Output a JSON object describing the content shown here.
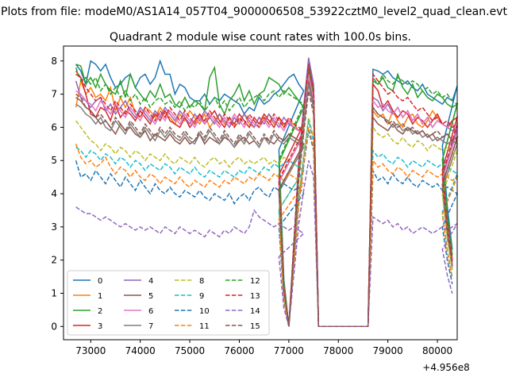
{
  "chart_data": {
    "type": "line",
    "suptitle": "Plots from file: modeM0/AS1A14_057T04_9000006508_53922cztM0_level2_quad_clean.evt",
    "title": "Quadrant 2 module wise count rates with 100.0s bins.",
    "xlabel": "",
    "ylabel": "",
    "x_offset_label": "+4.956e8",
    "xlim": [
      72450,
      80400
    ],
    "ylim": [
      -0.4,
      8.45
    ],
    "xticks": [
      73000,
      74000,
      75000,
      76000,
      77000,
      78000,
      79000,
      80000
    ],
    "xtick_labels": [
      "73000",
      "74000",
      "75000",
      "76000",
      "77000",
      "78000",
      "79000",
      "80000"
    ],
    "yticks": [
      0,
      1,
      2,
      3,
      4,
      5,
      6,
      7,
      8
    ],
    "ytick_labels": [
      "0",
      "1",
      "2",
      "3",
      "4",
      "5",
      "6",
      "7",
      "8"
    ],
    "legend_position": "lower-left",
    "series": [
      {
        "name": "0",
        "color": "#1f77b4",
        "dash": "solid",
        "seg1": [
          7.9,
          7.7,
          7.3,
          8.0,
          7.9,
          7.7,
          7.9,
          7.5,
          7.2,
          7.3,
          7.5,
          7.6,
          7.2,
          7.5,
          7.6,
          7.3,
          7.5,
          8.0,
          7.6,
          7.6,
          7.0,
          7.3,
          7.2,
          6.9,
          6.8,
          6.8,
          7.0,
          6.7,
          6.9,
          6.8,
          7.0,
          6.9,
          6.8,
          6.7,
          6.4,
          6.6,
          6.5,
          6.9,
          6.7,
          6.8,
          7.0,
          7.1,
          7.3,
          7.5,
          7.6,
          7.3,
          7.1
        ],
        "seg2": [
          7.75,
          7.7,
          7.6,
          7.7,
          7.5,
          7.4,
          7.3,
          7.4,
          7.2,
          7.1,
          7.3,
          7.0,
          6.9,
          6.8,
          6.7,
          6.9,
          6.8,
          7.25
        ],
        "peak": 7.95
      },
      {
        "name": "1",
        "color": "#ff7f0e",
        "dash": "solid",
        "seg1": [
          6.6,
          7.4,
          7.0,
          7.2,
          6.9,
          7.0,
          6.8,
          7.2,
          6.5,
          6.9,
          6.6,
          6.9,
          6.4,
          6.3,
          6.6,
          6.5,
          6.3,
          6.6,
          6.4,
          6.3,
          6.1,
          6.4,
          6.2,
          6.5,
          6.3,
          6.1,
          6.4,
          6.0,
          6.2,
          6.4,
          6.1,
          6.3,
          6.0,
          6.2,
          6.4,
          6.1,
          6.0,
          6.3,
          6.2,
          6.4,
          6.1,
          6.3,
          6.0,
          6.2,
          6.1,
          5.9,
          5.8
        ],
        "seg2": [
          6.5,
          6.3,
          6.4,
          6.1,
          6.5,
          6.2,
          6.0,
          6.3,
          6.4,
          6.1,
          6.0,
          6.2,
          6.5,
          6.3,
          6.1,
          6.0,
          6.2,
          5.5
        ],
        "peak": 7.5
      },
      {
        "name": "2",
        "color": "#2ca02c",
        "dash": "solid",
        "seg1": [
          7.9,
          7.85,
          7.3,
          7.5,
          7.2,
          7.6,
          7.3,
          7.1,
          7.0,
          7.4,
          6.9,
          7.6,
          7.2,
          7.0,
          6.8,
          7.1,
          6.9,
          7.3,
          6.9,
          7.0,
          6.7,
          6.6,
          6.9,
          6.6,
          6.8,
          6.7,
          6.5,
          7.5,
          7.8,
          6.7,
          6.4,
          6.8,
          7.0,
          7.3,
          6.8,
          7.1,
          6.7,
          7.0,
          7.1,
          7.5,
          7.4,
          7.3,
          7.0,
          7.2,
          7.0,
          6.8,
          6.6
        ],
        "seg2": [
          7.4,
          7.3,
          7.5,
          7.2,
          7.1,
          7.6,
          7.2,
          7.0,
          7.3,
          6.9,
          7.1,
          6.9,
          6.8,
          7.0,
          6.9,
          6.7,
          6.6,
          6.7
        ],
        "peak": 7.8
      },
      {
        "name": "3",
        "color": "#d62728",
        "dash": "solid",
        "seg1": [
          7.7,
          7.5,
          7.0,
          6.4,
          6.3,
          6.6,
          6.5,
          6.2,
          6.7,
          6.3,
          6.5,
          6.4,
          6.2,
          6.5,
          6.3,
          6.1,
          6.4,
          6.2,
          6.5,
          6.2,
          6.1,
          6.0,
          6.3,
          6.0,
          6.2,
          6.4,
          6.1,
          6.3,
          6.5,
          6.2,
          6.0,
          6.3,
          6.1,
          6.4,
          6.2,
          6.0,
          6.3,
          6.1,
          6.4,
          6.2,
          6.0,
          6.3,
          6.1,
          6.2,
          6.0,
          5.9,
          6.1
        ],
        "seg2": [
          7.3,
          7.1,
          6.6,
          6.8,
          6.5,
          6.3,
          6.5,
          6.4,
          6.1,
          6.3,
          6.2,
          6.0,
          6.2,
          6.4,
          6.1,
          6.0,
          6.2,
          6.3
        ],
        "peak": 7.7
      },
      {
        "name": "4",
        "color": "#9467bd",
        "dash": "solid",
        "seg1": [
          7.4,
          6.9,
          6.8,
          6.6,
          6.8,
          6.9,
          6.5,
          6.7,
          6.4,
          6.6,
          6.8,
          6.5,
          6.3,
          6.6,
          6.4,
          6.2,
          6.5,
          6.3,
          6.6,
          6.4,
          6.2,
          6.5,
          6.3,
          6.1,
          6.4,
          6.2,
          6.5,
          6.3,
          6.1,
          6.4,
          6.2,
          6.0,
          6.3,
          6.1,
          6.4,
          6.2,
          6.0,
          6.3,
          6.1,
          6.4,
          6.2,
          6.0,
          6.3,
          6.1,
          6.0,
          5.9,
          5.8
        ],
        "seg2": [
          6.9,
          6.8,
          6.5,
          6.7,
          6.4,
          6.6,
          6.3,
          6.5,
          6.2,
          6.4,
          6.1,
          6.3,
          6.0,
          6.2,
          6.1,
          6.0,
          5.9,
          6.0
        ],
        "peak": 8.1
      },
      {
        "name": "5",
        "color": "#8c564b",
        "dash": "solid",
        "seg1": [
          6.9,
          6.8,
          6.6,
          6.5,
          6.3,
          6.1,
          6.2,
          6.0,
          5.8,
          6.1,
          5.9,
          6.0,
          5.8,
          5.7,
          5.9,
          5.6,
          5.8,
          5.7,
          5.6,
          5.8,
          5.6,
          5.5,
          5.7,
          5.5,
          5.6,
          5.8,
          5.5,
          5.7,
          5.6,
          5.5,
          5.7,
          5.6,
          5.4,
          5.6,
          5.7,
          5.5,
          5.6,
          5.4,
          5.7,
          5.6,
          5.5,
          5.7,
          5.6,
          5.8,
          5.7,
          5.6,
          5.5
        ],
        "seg2": [
          6.3,
          6.1,
          6.0,
          5.9,
          6.1,
          5.9,
          5.8,
          6.0,
          5.9,
          5.8,
          5.9,
          5.7,
          5.8,
          5.6,
          5.7,
          5.8,
          5.6,
          5.7
        ],
        "peak": 7.4
      },
      {
        "name": "6",
        "color": "#e377c2",
        "dash": "solid",
        "seg1": [
          7.1,
          7.0,
          6.8,
          6.7,
          6.5,
          6.8,
          6.6,
          6.4,
          6.7,
          6.5,
          6.3,
          6.6,
          6.4,
          6.2,
          6.5,
          6.3,
          6.1,
          6.4,
          6.2,
          6.5,
          6.3,
          6.1,
          6.4,
          6.2,
          6.0,
          6.3,
          6.1,
          6.4,
          6.2,
          6.0,
          6.3,
          6.1,
          6.4,
          6.2,
          6.0,
          6.3,
          6.1,
          6.0,
          6.2,
          6.0,
          6.3,
          6.1,
          5.9,
          6.2,
          6.0,
          5.9,
          5.8
        ],
        "seg2": [
          6.8,
          6.6,
          6.7,
          6.5,
          6.4,
          6.6,
          6.3,
          6.5,
          6.2,
          6.4,
          6.1,
          6.3,
          6.0,
          6.2,
          6.1,
          6.0,
          6.1,
          5.9
        ],
        "peak": 7.6
      },
      {
        "name": "7",
        "color": "#7f7f7f",
        "dash": "solid",
        "seg1": [
          6.7,
          6.6,
          6.4,
          6.3,
          6.1,
          6.3,
          6.0,
          5.9,
          6.2,
          6.0,
          5.8,
          6.1,
          5.9,
          5.7,
          6.0,
          5.8,
          5.6,
          5.9,
          5.7,
          5.9,
          5.7,
          5.6,
          5.8,
          5.6,
          5.5,
          5.8,
          5.6,
          5.9,
          5.7,
          5.5,
          5.8,
          5.6,
          5.4,
          5.7,
          5.5,
          5.8,
          5.6,
          5.4,
          5.7,
          5.5,
          5.8,
          5.6,
          5.5,
          5.7,
          5.6,
          5.5,
          5.4
        ],
        "seg2": [
          6.6,
          6.4,
          6.3,
          6.2,
          6.0,
          6.1,
          5.9,
          6.0,
          5.8,
          5.9,
          5.7,
          5.8,
          5.6,
          5.7,
          5.6,
          5.5,
          5.6,
          5.5
        ],
        "peak": 7.3
      },
      {
        "name": "8",
        "color": "#bcbd22",
        "dash": "dashed",
        "seg1": [
          6.2,
          6.0,
          5.8,
          5.6,
          5.5,
          5.3,
          5.5,
          5.4,
          5.2,
          5.4,
          5.3,
          5.1,
          5.3,
          5.2,
          5.0,
          5.2,
          5.1,
          5.0,
          5.2,
          5.0,
          4.9,
          5.1,
          5.0,
          4.9,
          5.1,
          4.9,
          4.8,
          5.0,
          5.1,
          4.9,
          5.0,
          4.8,
          5.0,
          5.1,
          4.9,
          5.0,
          4.9,
          5.0,
          5.1,
          4.9,
          5.0,
          4.9,
          5.1,
          5.0,
          4.9,
          4.8,
          4.7
        ],
        "seg2": [
          6.0,
          5.8,
          5.7,
          5.8,
          5.6,
          5.5,
          5.7,
          5.5,
          5.4,
          5.6,
          5.5,
          5.3,
          5.5,
          5.4,
          5.3,
          5.4,
          5.2,
          5.3
        ],
        "peak": 6.3
      },
      {
        "name": "9",
        "color": "#17becf",
        "dash": "dashed",
        "seg1": [
          5.4,
          5.3,
          5.1,
          5.3,
          5.2,
          5.0,
          5.2,
          5.1,
          4.9,
          5.1,
          5.0,
          4.8,
          5.0,
          4.9,
          4.7,
          4.9,
          4.8,
          4.7,
          4.9,
          4.8,
          4.6,
          4.8,
          4.7,
          4.6,
          4.8,
          4.6,
          4.5,
          4.7,
          4.6,
          4.5,
          4.7,
          4.6,
          4.5,
          4.7,
          4.6,
          4.8,
          4.7,
          4.6,
          4.8,
          4.7,
          4.9,
          4.8,
          4.9,
          5.0,
          4.9,
          4.8,
          4.7
        ],
        "seg2": [
          5.3,
          5.1,
          5.2,
          5.0,
          4.9,
          5.1,
          5.0,
          4.8,
          5.0,
          4.9,
          4.8,
          5.0,
          4.9,
          4.8,
          4.9,
          4.8,
          4.7,
          4.6
        ],
        "peak": 6.2
      },
      {
        "name": "10",
        "color": "#1f77b4",
        "dash": "dashed",
        "seg1": [
          5.0,
          4.5,
          4.6,
          4.4,
          4.7,
          4.5,
          4.3,
          4.6,
          4.4,
          4.2,
          4.5,
          4.3,
          4.1,
          4.4,
          4.2,
          4.0,
          4.3,
          4.1,
          4.0,
          4.2,
          4.0,
          3.9,
          4.1,
          4.0,
          3.9,
          4.1,
          3.9,
          3.8,
          4.0,
          3.9,
          3.8,
          4.0,
          3.7,
          3.9,
          4.0,
          3.8,
          4.1,
          4.2,
          4.0,
          3.9,
          4.2,
          4.1,
          4.3,
          4.2,
          4.1,
          4.2,
          4.0
        ],
        "seg2": [
          4.7,
          4.4,
          4.5,
          4.3,
          4.6,
          4.4,
          4.3,
          4.5,
          4.3,
          4.2,
          4.4,
          4.3,
          4.2,
          4.3,
          4.1,
          4.2,
          4.1,
          4.0
        ],
        "peak": 5.9
      },
      {
        "name": "11",
        "color": "#ff7f0e",
        "dash": "dashed",
        "seg1": [
          5.5,
          5.1,
          4.9,
          5.0,
          4.8,
          4.9,
          5.1,
          4.8,
          4.6,
          4.8,
          4.7,
          4.5,
          4.7,
          4.5,
          4.4,
          4.6,
          4.5,
          4.3,
          4.5,
          4.4,
          4.3,
          4.5,
          4.3,
          4.2,
          4.4,
          4.3,
          4.2,
          4.4,
          4.3,
          4.2,
          4.4,
          4.3,
          4.5,
          4.4,
          4.3,
          4.5,
          4.4,
          4.6,
          4.5,
          4.4,
          4.6,
          4.5,
          4.4,
          4.6,
          4.5,
          4.4,
          4.3
        ],
        "seg2": [
          5.0,
          4.8,
          4.9,
          4.7,
          4.6,
          4.8,
          4.7,
          4.5,
          4.7,
          4.6,
          4.5,
          4.7,
          4.6,
          4.5,
          4.6,
          4.5,
          4.4,
          4.5
        ],
        "peak": 6.0
      },
      {
        "name": "12",
        "color": "#2ca02c",
        "dash": "dashed",
        "seg1": [
          7.8,
          7.4,
          7.5,
          7.3,
          7.5,
          7.1,
          7.3,
          7.0,
          7.2,
          6.9,
          7.1,
          6.8,
          7.0,
          6.7,
          6.9,
          6.6,
          6.8,
          6.9,
          6.7,
          6.8,
          6.6,
          6.8,
          6.5,
          6.7,
          6.6,
          6.8,
          6.5,
          6.7,
          6.9,
          6.6,
          6.8,
          6.5,
          6.7,
          6.9,
          6.6,
          6.8,
          6.9,
          7.0,
          6.8,
          7.0,
          7.1,
          6.9,
          7.1,
          7.0,
          6.9,
          6.8,
          6.7
        ],
        "seg2": [
          7.5,
          7.3,
          7.6,
          7.4,
          7.3,
          7.5,
          7.4,
          7.3,
          7.4,
          7.3,
          7.1,
          7.2,
          7.0,
          7.1,
          6.9,
          7.0,
          6.8,
          6.7
        ],
        "peak": 7.8
      },
      {
        "name": "13",
        "color": "#d62728",
        "dash": "dashed",
        "seg1": [
          7.6,
          7.5,
          7.2,
          7.0,
          6.8,
          6.9,
          6.7,
          6.5,
          6.8,
          6.6,
          6.4,
          6.7,
          6.5,
          6.3,
          6.6,
          6.4,
          6.2,
          6.5,
          6.3,
          6.6,
          6.4,
          6.2,
          6.5,
          6.3,
          6.1,
          6.4,
          6.2,
          6.5,
          6.3,
          6.1,
          6.4,
          6.2,
          6.0,
          6.3,
          6.1,
          6.4,
          6.2,
          6.0,
          6.3,
          6.1,
          6.4,
          6.2,
          6.0,
          6.3,
          6.1,
          6.0,
          5.9
        ],
        "seg2": [
          7.6,
          7.4,
          7.2,
          7.0,
          7.1,
          6.9,
          6.8,
          6.9,
          6.7,
          6.5,
          6.6,
          6.4,
          6.2,
          6.3,
          6.1,
          6.2,
          6.0,
          6.1
        ],
        "peak": 7.9
      },
      {
        "name": "14",
        "color": "#9467bd",
        "dash": "dashed",
        "seg1": [
          3.6,
          3.5,
          3.4,
          3.4,
          3.3,
          3.2,
          3.3,
          3.2,
          3.1,
          3.0,
          3.1,
          3.0,
          2.9,
          3.0,
          2.9,
          3.0,
          2.9,
          2.8,
          3.0,
          2.9,
          2.8,
          3.0,
          2.9,
          2.8,
          2.9,
          2.8,
          2.7,
          2.9,
          2.8,
          2.7,
          2.9,
          2.8,
          3.0,
          2.9,
          2.8,
          3.0,
          3.5,
          3.3,
          3.2,
          3.1,
          3.0,
          3.1,
          3.0,
          2.9,
          3.0,
          2.9,
          2.8
        ],
        "seg2": [
          3.3,
          3.2,
          3.1,
          3.2,
          3.0,
          3.1,
          2.9,
          3.0,
          2.8,
          2.9,
          3.0,
          2.9,
          2.8,
          2.9,
          3.0,
          2.9,
          3.0,
          3.1
        ],
        "peak": 5.0
      },
      {
        "name": "15",
        "color": "#8c564b",
        "dash": "dashed",
        "seg1": [
          7.0,
          6.9,
          6.6,
          6.5,
          6.3,
          6.4,
          6.2,
          6.0,
          6.3,
          6.1,
          5.9,
          6.2,
          6.0,
          5.8,
          6.1,
          5.9,
          5.7,
          6.0,
          5.8,
          6.0,
          5.8,
          5.7,
          5.9,
          5.7,
          5.6,
          5.9,
          5.7,
          6.0,
          5.8,
          5.6,
          5.9,
          5.7,
          5.5,
          5.8,
          5.6,
          5.9,
          5.7,
          5.5,
          5.8,
          5.6,
          5.9,
          5.7,
          5.6,
          5.8,
          5.7,
          5.6,
          5.5
        ],
        "seg2": [
          6.6,
          6.4,
          6.3,
          6.1,
          6.2,
          6.0,
          6.1,
          5.9,
          6.0,
          5.8,
          5.9,
          5.7,
          5.8,
          5.9,
          5.7,
          5.8,
          5.6,
          5.7
        ],
        "peak": 7.1
      }
    ],
    "segment_times": {
      "seg1_start": 72700,
      "step": 100,
      "gap_in": [
        76800,
        76900,
        77000
      ],
      "flare": [
        77200,
        77300,
        77400,
        77500
      ],
      "zero_plateau": [
        77600,
        78600
      ],
      "seg2_start": 78700,
      "tail": [
        80100,
        80200,
        80300
      ]
    }
  }
}
